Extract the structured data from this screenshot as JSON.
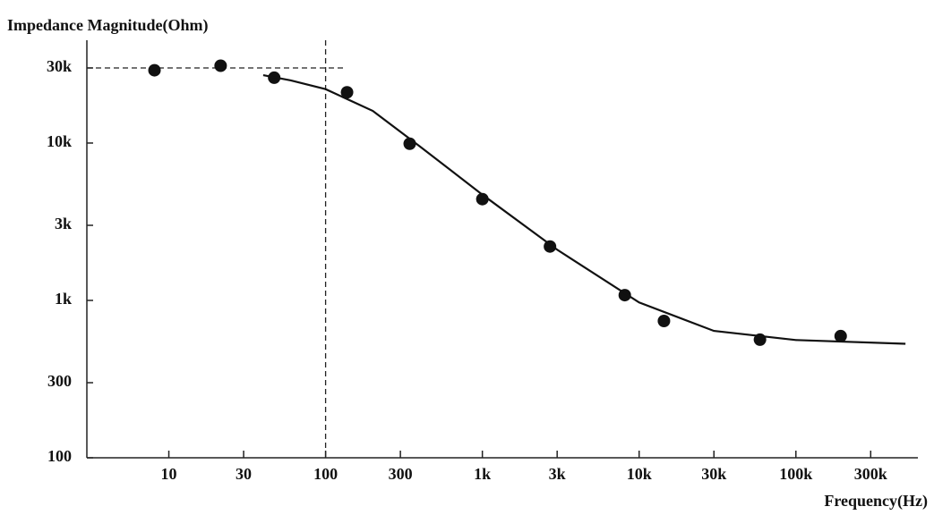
{
  "chart_data": {
    "type": "scatter",
    "title": "Impedance Magnitude(Ohm)",
    "x_label": "Frequency(Hz)",
    "log_x": true,
    "log_y": true,
    "xlim": [
      3,
      600000
    ],
    "ylim": [
      100,
      45000
    ],
    "xticks": [
      10,
      30,
      100,
      300,
      {
        "value": 1000,
        "label": "1k"
      },
      {
        "value": 3000,
        "label": "3k"
      },
      {
        "value": 10000,
        "label": "10k"
      },
      {
        "value": 30000,
        "label": "30k"
      },
      {
        "value": 100000,
        "label": "100k"
      },
      {
        "value": 300000,
        "label": "300k"
      }
    ],
    "yticks": [
      100,
      300,
      {
        "value": 1000,
        "label": "1k"
      },
      {
        "value": 3000,
        "label": "3k"
      },
      {
        "value": 10000,
        "label": "10k"
      },
      {
        "value": 30000,
        "label": "30k"
      }
    ],
    "reference_y": [
      30000
    ],
    "reference_x": [
      100
    ],
    "series": [
      {
        "style": "markers",
        "color": "#111111",
        "x": [
          8.1,
          21.4,
          47,
          137,
          344,
          1000,
          2700,
          8100,
          14400,
          59000,
          193000
        ],
        "values": [
          29000,
          31000,
          26000,
          21000,
          9900,
          4400,
          2200,
          1080,
          740,
          563,
          593
        ]
      },
      {
        "style": "line",
        "color": "#111111",
        "x": [
          40,
          60,
          100,
          200,
          400,
          1000,
          3000,
          10000,
          30000,
          100000,
          500000
        ],
        "values": [
          27000,
          25000,
          22000,
          16000,
          9500,
          4700,
          2100,
          970,
          640,
          560,
          530
        ]
      }
    ]
  }
}
